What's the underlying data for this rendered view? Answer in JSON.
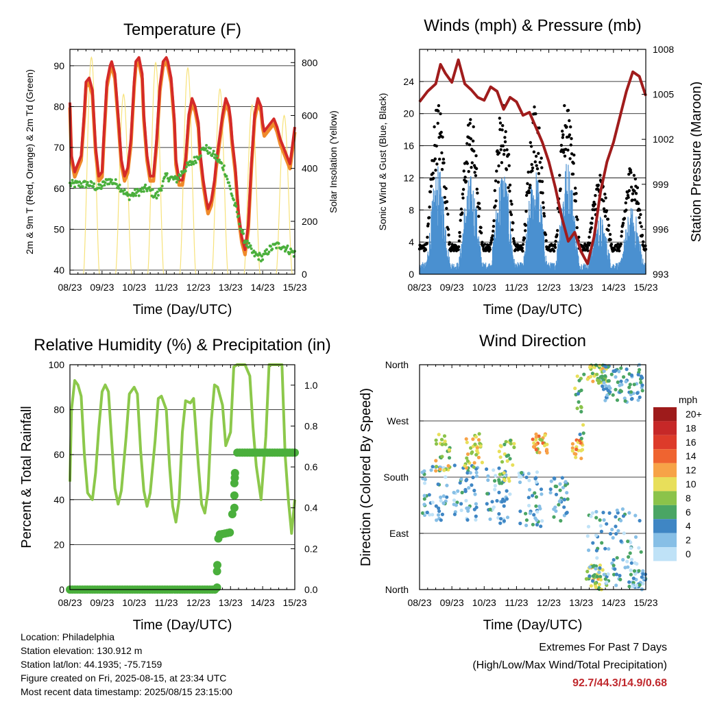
{
  "chart_data": [
    {
      "type": "line",
      "title": "Temperature (F)",
      "xlabel": "Time (Day/UTC)",
      "ylabel": "2m & 9m T (Red, Orange) & 2m Td (Green)",
      "y2label": "Solar Insolation (Yellow)",
      "x_ticks": [
        "08/23",
        "09/23",
        "10/23",
        "11/23",
        "12/23",
        "13/23",
        "14/23",
        "15/23"
      ],
      "xlim": [
        0,
        7
      ],
      "ylim": [
        39,
        94
      ],
      "y_ticks": [
        40,
        50,
        60,
        70,
        80,
        90
      ],
      "y2lim": [
        0,
        850
      ],
      "y2_ticks": [
        0,
        200,
        400,
        600,
        800
      ],
      "grid": true,
      "colors": {
        "t2m": "#d42a28",
        "t9m": "#f08a2a",
        "td2m": "#4aaf3c",
        "solar": "#f7e27a"
      },
      "series": [
        {
          "key": "t2m",
          "x": [
            0,
            0.05,
            0.15,
            0.25,
            0.35,
            0.45,
            0.5,
            0.6,
            0.7,
            0.8,
            0.9,
            1.0,
            1.05,
            1.15,
            1.25,
            1.3,
            1.4,
            1.5,
            1.6,
            1.7,
            1.8,
            1.9,
            2.0,
            2.05,
            2.15,
            2.25,
            2.3,
            2.4,
            2.5,
            2.6,
            2.7,
            2.8,
            2.9,
            3.0,
            3.05,
            3.15,
            3.25,
            3.3,
            3.4,
            3.5,
            3.6,
            3.7,
            3.8,
            3.9,
            4.0,
            4.05,
            4.15,
            4.25,
            4.3,
            4.4,
            4.5,
            4.55,
            4.65,
            4.75,
            4.85,
            4.95,
            5.0,
            5.05,
            5.15,
            5.25,
            5.35,
            5.45,
            5.55,
            5.65,
            5.75,
            5.85,
            5.95,
            6.0,
            6.05,
            6.15,
            6.25,
            6.35,
            6.45,
            6.55,
            6.65,
            6.75,
            6.85,
            6.95,
            7.0
          ],
          "y": [
            81,
            68,
            64,
            66,
            68,
            79,
            86,
            87,
            84,
            70,
            63,
            64,
            72,
            86,
            90,
            91,
            88,
            78,
            67,
            63,
            65,
            72,
            86,
            91,
            92,
            88,
            78,
            68,
            63,
            63,
            72,
            85,
            91,
            92,
            91,
            87,
            77,
            67,
            62,
            62,
            67,
            78,
            82,
            80,
            76,
            69,
            62,
            57,
            55,
            57,
            62,
            66,
            72,
            78,
            82,
            80,
            77,
            72,
            65,
            54,
            48,
            45,
            51,
            66,
            78,
            82,
            80,
            76,
            74,
            75,
            76,
            77,
            75,
            72,
            70,
            68,
            66,
            72,
            75
          ]
        },
        {
          "key": "td2m",
          "x": [
            0,
            0.3,
            0.6,
            0.9,
            1.2,
            1.5,
            1.8,
            2.1,
            2.4,
            2.7,
            3.0,
            3.3,
            3.6,
            3.9,
            4.2,
            4.5,
            4.8,
            5.1,
            5.4,
            5.7,
            6.0,
            6.2,
            6.4,
            6.6,
            6.8,
            7.0
          ],
          "y": [
            61,
            61,
            61,
            60,
            62,
            61,
            58,
            59,
            60,
            58,
            63,
            62,
            65,
            67,
            70,
            68,
            65,
            57,
            48,
            44,
            43,
            45,
            46,
            46,
            45,
            44
          ]
        }
      ]
    },
    {
      "type": "line",
      "title": "Winds (mph) & Pressure (mb)",
      "xlabel": "Time (Day/UTC)",
      "ylabel": "Sonic Wind & Gust (Blue, Black)",
      "y2label": "Station Pressure (Maroon)",
      "x_ticks": [
        "08/23",
        "09/23",
        "10/23",
        "11/23",
        "12/23",
        "13/23",
        "14/23",
        "15/23"
      ],
      "xlim": [
        0,
        7
      ],
      "ylim": [
        0,
        28
      ],
      "y_ticks": [
        0,
        4,
        8,
        12,
        16,
        20,
        24
      ],
      "y2lim": [
        993,
        1008
      ],
      "y2_ticks": [
        993,
        996,
        999,
        1002,
        1005,
        1008
      ],
      "grid": true,
      "colors": {
        "wind": "#4a90d0",
        "gust": "#000000",
        "pressure": "#a01c1c"
      },
      "series": [
        {
          "key": "pressure",
          "x": [
            0,
            0.25,
            0.5,
            0.65,
            0.8,
            1.0,
            1.2,
            1.4,
            1.6,
            1.8,
            2.0,
            2.2,
            2.4,
            2.6,
            2.8,
            3.0,
            3.2,
            3.4,
            3.6,
            3.8,
            4.0,
            4.2,
            4.4,
            4.6,
            4.8,
            5.0,
            5.2,
            5.4,
            5.6,
            5.8,
            6.0,
            6.2,
            6.4,
            6.6,
            6.8,
            7.0
          ],
          "y": [
            1004.5,
            1005.2,
            1005.7,
            1007.0,
            1006.4,
            1005.8,
            1007.3,
            1005.7,
            1005.3,
            1004.8,
            1004.6,
            1005.5,
            1005.2,
            1004.0,
            1004.8,
            1004.5,
            1003.6,
            1003.8,
            1002.8,
            1001.8,
            1000.5,
            998.8,
            996.8,
            995.2,
            995.8,
            994.5,
            993.7,
            995.5,
            998.5,
            1000.5,
            1001.8,
            1003.5,
            1005.2,
            1006.5,
            1006.2,
            1004.9
          ]
        }
      ]
    },
    {
      "type": "line",
      "title": "Relative Humidity (%) & Precipitation (in)",
      "xlabel": "Time (Day/UTC)",
      "ylabel": "Percent & Total Rainfall",
      "x_ticks": [
        "08/23",
        "09/23",
        "10/23",
        "11/23",
        "12/23",
        "13/23",
        "14/23",
        "15/23"
      ],
      "xlim": [
        0,
        7
      ],
      "ylim": [
        0,
        100
      ],
      "y_ticks": [
        0,
        20,
        40,
        60,
        80,
        100
      ],
      "y2lim": [
        0,
        1.1
      ],
      "y2_ticks": [
        "0.0",
        "0.2",
        "0.4",
        "0.6",
        "0.8",
        "1.0"
      ],
      "grid": true,
      "colors": {
        "rh": "#8cc84b",
        "precip": "#4aaf3c"
      },
      "series": [
        {
          "key": "rh",
          "x": [
            0,
            0.05,
            0.15,
            0.25,
            0.35,
            0.45,
            0.55,
            0.7,
            0.8,
            0.9,
            1.0,
            1.1,
            1.2,
            1.3,
            1.4,
            1.5,
            1.6,
            1.75,
            1.85,
            2.0,
            2.1,
            2.2,
            2.3,
            2.4,
            2.5,
            2.65,
            2.75,
            2.85,
            3.0,
            3.1,
            3.2,
            3.3,
            3.4,
            3.5,
            3.6,
            3.75,
            3.85,
            4.0,
            4.1,
            4.2,
            4.3,
            4.4,
            4.5,
            4.6,
            4.75,
            4.85,
            5.0,
            5.1,
            5.2,
            5.3,
            5.45,
            5.6,
            5.7,
            5.8,
            5.95,
            6.1,
            6.2,
            6.3,
            6.45,
            6.6,
            6.7,
            6.8,
            6.9,
            7.0
          ],
          "y": [
            48,
            80,
            93,
            91,
            86,
            60,
            43,
            40,
            52,
            72,
            88,
            91,
            88,
            66,
            45,
            38,
            44,
            68,
            87,
            90,
            87,
            62,
            44,
            37,
            43,
            66,
            85,
            86,
            80,
            55,
            37,
            30,
            40,
            70,
            84,
            83,
            85,
            55,
            38,
            34,
            44,
            75,
            91,
            90,
            82,
            64,
            70,
            99,
            100,
            100,
            100,
            95,
            72,
            55,
            40,
            68,
            100,
            100,
            100,
            100,
            60,
            40,
            25,
            40
          ]
        },
        {
          "key": "precip",
          "x": [
            0,
            1,
            2,
            3,
            4,
            4.5,
            4.58,
            4.6,
            4.7,
            5.0,
            5.1,
            5.15,
            5.2,
            5.3,
            6,
            7
          ],
          "y": [
            0,
            0,
            0,
            0,
            0,
            0,
            0,
            0.27,
            0.27,
            0.28,
            0.44,
            0.6,
            0.67,
            0.67,
            0.67,
            0.67
          ]
        }
      ]
    },
    {
      "type": "scatter",
      "title": "Wind Direction",
      "xlabel": "Time (Day/UTC)",
      "ylabel": "Direction (Colored By Speed)",
      "x_ticks": [
        "08/23",
        "09/23",
        "10/23",
        "11/23",
        "12/23",
        "13/23",
        "14/23",
        "15/23"
      ],
      "xlim": [
        0,
        7
      ],
      "y_ticks": [
        "North",
        "East",
        "South",
        "West",
        "North"
      ],
      "ylim": [
        0,
        360
      ],
      "grid": true,
      "legend": {
        "title": "mph",
        "labels": [
          "20+",
          "18",
          "16",
          "14",
          "12",
          "10",
          "8",
          "6",
          "4",
          "2",
          "0"
        ],
        "colors": [
          "#9e1b1b",
          "#c62828",
          "#dd3b2a",
          "#ef6430",
          "#f7a347",
          "#e8df5a",
          "#8bc34a",
          "#4aa564",
          "#3f86c4",
          "#87bfe6",
          "#bfe2f7"
        ]
      },
      "clusters": [
        {
          "x0": 0.05,
          "x1": 0.85,
          "y0": 110,
          "y1": 200,
          "speed": 3
        },
        {
          "x0": 0.45,
          "x1": 0.95,
          "y0": 190,
          "y1": 250,
          "speed": 9
        },
        {
          "x0": 1.05,
          "x1": 1.85,
          "y0": 110,
          "y1": 200,
          "speed": 3
        },
        {
          "x0": 1.4,
          "x1": 1.95,
          "y0": 190,
          "y1": 250,
          "speed": 10
        },
        {
          "x0": 2.05,
          "x1": 2.8,
          "y0": 105,
          "y1": 195,
          "speed": 3
        },
        {
          "x0": 2.45,
          "x1": 2.95,
          "y0": 170,
          "y1": 240,
          "speed": 8
        },
        {
          "x0": 3.05,
          "x1": 3.8,
          "y0": 100,
          "y1": 190,
          "speed": 3
        },
        {
          "x0": 3.5,
          "x1": 3.95,
          "y0": 215,
          "y1": 250,
          "speed": 11
        },
        {
          "x0": 4.0,
          "x1": 4.6,
          "y0": 110,
          "y1": 180,
          "speed": 4
        },
        {
          "x0": 4.7,
          "x1": 5.05,
          "y0": 205,
          "y1": 240,
          "speed": 12
        },
        {
          "x0": 4.8,
          "x1": 5.1,
          "y0": 240,
          "y1": 355,
          "speed": 7
        },
        {
          "x0": 5.2,
          "x1": 5.8,
          "y0": 330,
          "y1": 360,
          "speed": 9
        },
        {
          "x0": 5.15,
          "x1": 5.8,
          "y0": 0,
          "y1": 40,
          "speed": 9
        },
        {
          "x0": 5.2,
          "x1": 6.9,
          "y0": 0,
          "y1": 130,
          "speed": 3
        },
        {
          "x0": 5.6,
          "x1": 6.95,
          "y0": 300,
          "y1": 360,
          "speed": 4
        },
        {
          "x0": 6.55,
          "x1": 7.0,
          "y0": 0,
          "y1": 30,
          "speed": 3
        }
      ]
    }
  ],
  "info": {
    "location": "Location: Philadelphia",
    "elevation": "Station elevation: 130.912 m",
    "latlon": "Station lat/lon: 44.1935; -75.7159",
    "created": "Figure created on Fri, 2025-08-15, at 23:34 UTC",
    "recent": "Most recent data timestamp: 2025/08/15 23:15:00"
  },
  "extremes": {
    "line1": "Extremes For Past 7 Days",
    "line2": "(High/Low/Max Wind/Total Precipitation)",
    "values": "92.7/44.3/14.9/0.68"
  }
}
